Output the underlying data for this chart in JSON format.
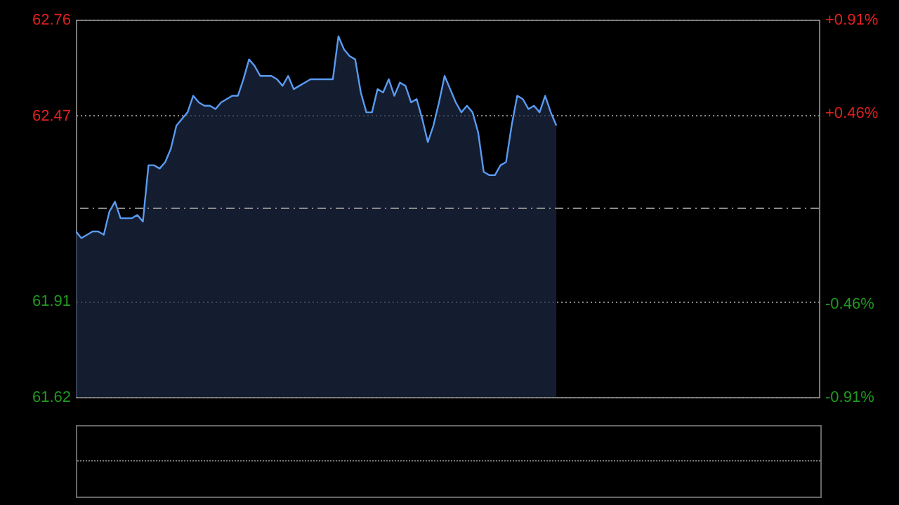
{
  "chart_data": {
    "type": "area",
    "categories": [
      null,
      null,
      null,
      null,
      null,
      null,
      null,
      null,
      null,
      null,
      null,
      null,
      null,
      null,
      null,
      null,
      null,
      null,
      null,
      null,
      null,
      null,
      null,
      null,
      null,
      null,
      null,
      null,
      null,
      null,
      null,
      null,
      null,
      null,
      null,
      null,
      null,
      null,
      null,
      null,
      null,
      null,
      null,
      null,
      null,
      null,
      null,
      null,
      null,
      null,
      null,
      null,
      null,
      null,
      null,
      null,
      null,
      null,
      null,
      null,
      null,
      null,
      null,
      null,
      null,
      null,
      null,
      null,
      null,
      null,
      null,
      null,
      null,
      null,
      null,
      null,
      null,
      null,
      null,
      null,
      null,
      null,
      null,
      null,
      null,
      null,
      null,
      null,
      null,
      null,
      null,
      null,
      null,
      null,
      null,
      null,
      null,
      null,
      null,
      null,
      null,
      null,
      null,
      null,
      null,
      null,
      null,
      null,
      null,
      null,
      null,
      null,
      null,
      null,
      null,
      null,
      null,
      null,
      null,
      null,
      null,
      null,
      null,
      null,
      null,
      null,
      null,
      null,
      null,
      null,
      null,
      null,
      null,
      null
    ],
    "series": [
      {
        "color": "#5a9af0",
        "values": [
          62.12,
          62.1,
          62.11,
          62.12,
          62.12,
          62.11,
          62.18,
          62.21,
          62.16,
          62.16,
          62.16,
          62.17,
          62.15,
          62.32,
          62.32,
          62.31,
          62.33,
          62.37,
          62.44,
          62.46,
          62.48,
          62.53,
          62.51,
          62.5,
          62.5,
          62.49,
          62.51,
          62.52,
          62.53,
          62.53,
          62.58,
          62.64,
          62.62,
          62.59,
          62.59,
          62.59,
          62.58,
          62.56,
          62.59,
          62.55,
          62.56,
          62.57,
          62.58,
          62.58,
          62.58,
          62.58,
          62.58,
          62.71,
          62.67,
          62.65,
          62.64,
          62.54,
          62.48,
          62.48,
          62.55,
          62.54,
          62.58,
          62.53,
          62.57,
          62.56,
          62.51,
          62.52,
          62.46,
          62.39,
          62.44,
          62.51,
          62.59,
          62.55,
          62.51,
          62.48,
          62.5,
          62.48,
          62.42,
          62.3,
          62.29,
          62.29,
          62.32,
          62.33,
          62.44,
          62.53,
          62.52,
          62.49,
          62.5,
          62.48,
          62.53,
          62.48,
          62.44,
          null,
          null,
          null,
          null,
          null,
          null,
          null,
          null,
          null,
          null,
          null,
          null,
          null,
          null,
          null,
          null,
          null,
          null,
          null,
          null,
          null,
          null,
          null,
          null,
          null,
          null,
          null,
          null,
          null,
          null,
          null,
          null,
          null,
          null,
          null,
          null,
          null,
          null,
          null,
          null,
          null,
          null,
          null,
          null,
          null,
          null,
          null
        ]
      }
    ],
    "ylim": [
      61.62,
      62.76
    ],
    "yticks": [
      61.62,
      61.91,
      62.47,
      62.76
    ],
    "y2lim": [
      -0.91,
      0.91
    ],
    "y2ticks": [
      {
        "value": -0.91,
        "label": "-0.91%"
      },
      {
        "value": -0.46,
        "label": "-0.46%"
      },
      {
        "value": 0.46,
        "label": "+0.46%"
      },
      {
        "value": 0.91,
        "label": "+0.91%"
      }
    ],
    "ref_lines": [
      {
        "axis": "y2",
        "value": 0,
        "label": null,
        "color": "#8a8a8a",
        "line_style": "dashed"
      }
    ],
    "grid": "y"
  }
}
